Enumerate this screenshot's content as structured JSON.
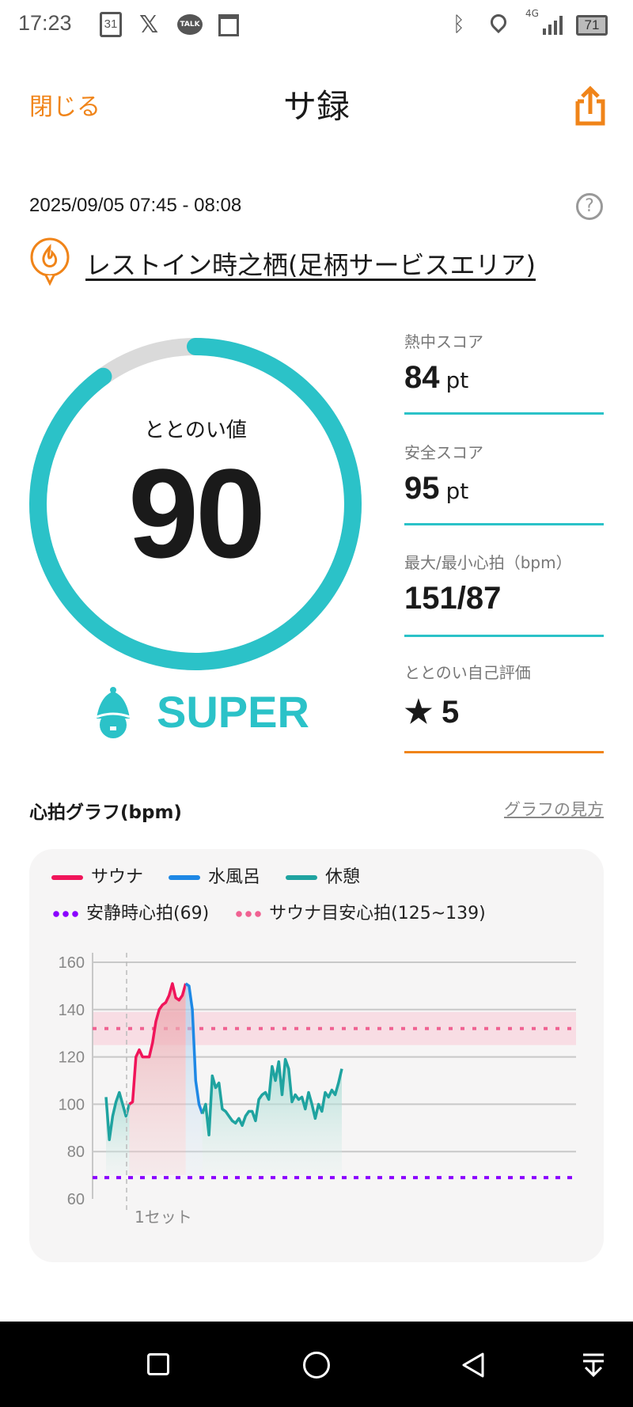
{
  "status_bar": {
    "time": "17:23",
    "battery": "71",
    "network": "4G",
    "icons": [
      "calendar-icon",
      "x-icon",
      "talk-icon",
      "news-icon",
      "bluetooth-icon",
      "location-icon",
      "signal-icon",
      "battery-icon"
    ],
    "calendar_day": "31",
    "talk_label": "TALK"
  },
  "header": {
    "close_label": "閉じる",
    "title": "サ録",
    "share_icon": "share-icon"
  },
  "session": {
    "datetime": "2025/09/05 07:45 - 08:08",
    "help_icon": "help-icon",
    "facility": "レストイン時之栖(足柄サービスエリア)"
  },
  "score": {
    "label": "ととのい値",
    "value": "90",
    "progress": 0.9,
    "rank": "SUPER",
    "color": "#2bc2c8"
  },
  "stats": [
    {
      "label": "熱中スコア",
      "value": "84",
      "unit": "pt"
    },
    {
      "label": "安全スコア",
      "value": "95",
      "unit": "pt"
    },
    {
      "label": "最大/最小心拍（bpm）",
      "value": "151/87",
      "unit": ""
    },
    {
      "label": "ととのい自己評価",
      "value": "★ 5",
      "unit": ""
    }
  ],
  "graph": {
    "title": "心拍グラフ(bpm)",
    "help_link": "グラフの見方"
  },
  "chart_data": {
    "type": "line",
    "legend": [
      {
        "name": "サウナ",
        "color": "#f0155a"
      },
      {
        "name": "水風呂",
        "color": "#1e88e5"
      },
      {
        "name": "休憩",
        "color": "#1fa3a0"
      },
      {
        "name": "安静時心拍(69)",
        "color": "#8a00ff"
      },
      {
        "name": "サウナ目安心拍(125~139)",
        "color": "#f06292"
      }
    ],
    "ylim": [
      60,
      160
    ],
    "yticks": [
      "160",
      "140",
      "120",
      "100",
      "80",
      "60"
    ],
    "resting_hr": 69,
    "target_range": [
      125,
      139
    ],
    "set_marker_label": "1セット",
    "series": [
      {
        "name": "休憩",
        "phase": "rest",
        "values": [
          103,
          85,
          95,
          101,
          105,
          100,
          95,
          100
        ]
      },
      {
        "name": "サウナ",
        "phase": "sauna",
        "values": [
          100,
          101,
          120,
          123,
          120,
          120,
          120,
          126,
          135,
          140,
          142,
          143,
          146,
          151,
          145,
          144,
          146,
          151
        ]
      },
      {
        "name": "水風呂",
        "phase": "cold",
        "values": [
          151,
          150,
          140,
          110,
          100,
          96
        ]
      },
      {
        "name": "休憩",
        "phase": "rest",
        "values": [
          96,
          100,
          87,
          112,
          107,
          109,
          98,
          97,
          95,
          93,
          92,
          94,
          91,
          95,
          97,
          97,
          93,
          102,
          104,
          105,
          102,
          116,
          110,
          118,
          104,
          119,
          115,
          101,
          104,
          102,
          103,
          98,
          105,
          100,
          94,
          100,
          97,
          105,
          103,
          106,
          104,
          109,
          115
        ]
      }
    ]
  }
}
